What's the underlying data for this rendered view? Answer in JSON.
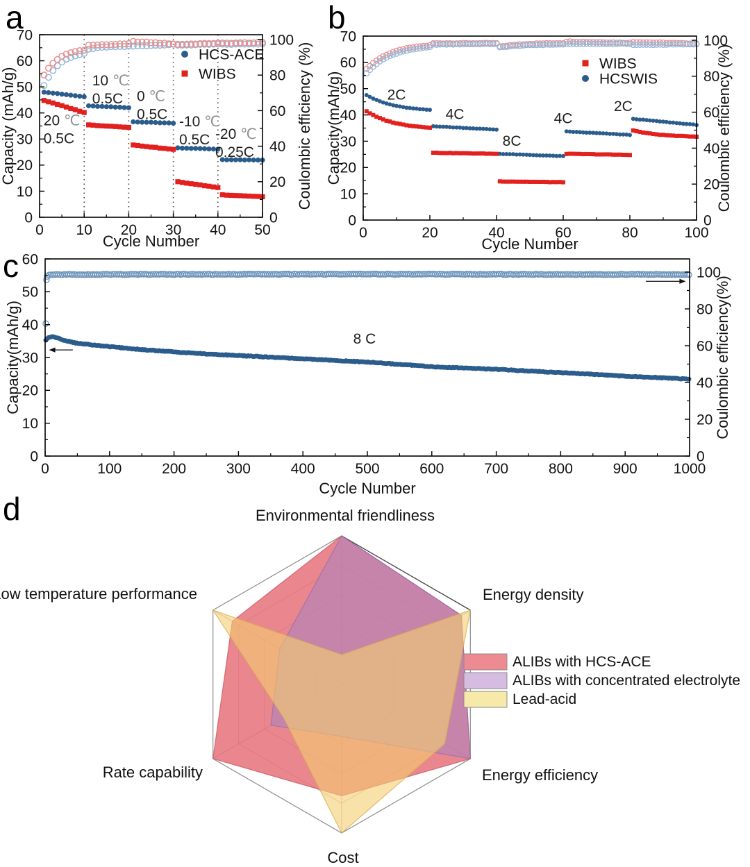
{
  "figure": {
    "panels": [
      {
        "label": "a"
      },
      {
        "label": "b"
      },
      {
        "label": "c"
      },
      {
        "label": "d"
      }
    ]
  },
  "colors": {
    "blue_filled": "#2b5c8c",
    "red_filled": "#e2201e",
    "blue_open": "#93b7d8",
    "red_open": "#e88f8f",
    "c_open": "#6b93ba",
    "axis": "#111111",
    "anno_text": "#1f1f1f",
    "anno_degree": "#909090",
    "radar_red": "#e4646e",
    "radar_red_stroke": "#c8525e",
    "radar_purple": "#ad84be",
    "radar_purple_stroke": "#966caa",
    "radar_yellow": "#f3cf6f",
    "radar_yellow_stroke": "#d4ad4e",
    "radar_grid": "#c2c2c2",
    "radar_outline": "#8c8c8c"
  },
  "chart_data": [
    {
      "panel": "a",
      "type": "scatter",
      "xlabel": "Cycle Number",
      "ylabel_left": "Capacity (mAh/g)",
      "ylabel_right": "Coulombic efficiency (%)",
      "xlim": [
        0,
        50
      ],
      "x_ticks": [
        0,
        10,
        20,
        30,
        40,
        50
      ],
      "ylim_left": [
        0,
        70
      ],
      "y_ticks_left": [
        0,
        10,
        20,
        30,
        40,
        50,
        60,
        70
      ],
      "ylim_right": [
        0,
        100
      ],
      "y_ticks_right": [
        0,
        20,
        40,
        60,
        80,
        100
      ],
      "dotted_vlines": [
        10,
        20,
        30,
        40
      ],
      "legend": [
        {
          "label": "HCS-ACE",
          "marker": "circle",
          "color_key": "blue_filled"
        },
        {
          "label": "WIBS",
          "marker": "square",
          "color_key": "red_filled"
        }
      ],
      "annotations": [
        {
          "lines": [
            "20 ℃",
            "0.5C"
          ],
          "x": 0.9,
          "y": 35.3,
          "anchor": "start"
        },
        {
          "lines": [
            "10 ℃",
            "0.5C"
          ],
          "x": 11.8,
          "y": 50.6,
          "anchor": "start"
        },
        {
          "lines": [
            "0 ℃",
            "0.5C"
          ],
          "x": 21.8,
          "y": 44.6,
          "anchor": "start"
        },
        {
          "lines": [
            "-10 ℃",
            "0.5C"
          ],
          "x": 31.3,
          "y": 34.9,
          "anchor": "start"
        },
        {
          "lines": [
            "-20 ℃",
            "0.25C"
          ],
          "x": 39.4,
          "y": 30.1,
          "anchor": "start"
        }
      ],
      "series": [
        {
          "name": "HCS-ACE efficiency",
          "role": "efficiency",
          "axis": "right",
          "marker": "open_circle",
          "color_key": "blue_open",
          "segments": [
            {
              "cycles": [
                1,
                10
              ],
              "start": 74,
              "end": 93.5,
              "shape": "exp_rise"
            },
            {
              "cycles": [
                11,
                20
              ],
              "start": 94.5,
              "end": 96.3,
              "shape": "exp_rise"
            },
            {
              "cycles": [
                21,
                30
              ],
              "start": 96.3,
              "end": 97.2,
              "shape": "linear"
            },
            {
              "cycles": [
                31,
                40
              ],
              "start": 96.8,
              "end": 97.4,
              "shape": "linear"
            },
            {
              "cycles": [
                41,
                50
              ],
              "start": 97.3,
              "end": 97.6,
              "shape": "linear"
            }
          ]
        },
        {
          "name": "WIBS efficiency",
          "role": "efficiency",
          "axis": "right",
          "marker": "open_circle",
          "color_key": "red_open",
          "segments": [
            {
              "cycles": [
                1,
                10
              ],
              "start": 80,
              "end": 95.3,
              "shape": "exp_rise"
            },
            {
              "cycles": [
                11,
                20
              ],
              "start": 96.8,
              "end": 97.6,
              "shape": "linear"
            },
            {
              "cycles": [
                21,
                30
              ],
              "start": 98.9,
              "end": 97.6,
              "shape": "linear"
            },
            {
              "cycles": [
                31,
                40
              ],
              "start": 97.3,
              "end": 98.0,
              "shape": "linear"
            },
            {
              "cycles": [
                41,
                50
              ],
              "start": 98.0,
              "end": 98.3,
              "shape": "linear"
            }
          ]
        },
        {
          "name": "HCS-ACE",
          "role": "capacity",
          "axis": "left",
          "marker": "circle",
          "color_key": "blue_filled",
          "segments": [
            {
              "cycles": [
                1,
                10
              ],
              "start": 48.0,
              "end": 46.2,
              "shape": "linear"
            },
            {
              "cycles": [
                11,
                20
              ],
              "start": 42.7,
              "end": 42.0,
              "shape": "linear"
            },
            {
              "cycles": [
                21,
                30
              ],
              "start": 36.6,
              "end": 36.1,
              "shape": "linear"
            },
            {
              "cycles": [
                31,
                40
              ],
              "start": 26.6,
              "end": 26.1,
              "shape": "linear"
            },
            {
              "cycles": [
                41,
                50
              ],
              "start": 22.1,
              "end": 21.9,
              "shape": "linear"
            }
          ]
        },
        {
          "name": "WIBS",
          "role": "capacity",
          "axis": "left",
          "marker": "square",
          "color_key": "red_filled",
          "segments": [
            {
              "cycles": [
                1,
                10
              ],
              "start": 44.8,
              "end": 40.2,
              "shape": "linear"
            },
            {
              "cycles": [
                11,
                20
              ],
              "start": 35.4,
              "end": 34.5,
              "shape": "linear"
            },
            {
              "cycles": [
                21,
                30
              ],
              "start": 27.7,
              "end": 26.0,
              "shape": "linear"
            },
            {
              "cycles": [
                31,
                40
              ],
              "start": 13.6,
              "end": 11.4,
              "shape": "linear"
            },
            {
              "cycles": [
                41,
                50
              ],
              "start": 8.6,
              "end": 7.9,
              "shape": "linear"
            }
          ]
        }
      ]
    },
    {
      "panel": "b",
      "type": "scatter",
      "xlabel": "Cycle Number",
      "ylabel_left": "Capacity(mAh/g)",
      "ylabel_right": "Coulombic efficiency (%)",
      "xlim": [
        0,
        100
      ],
      "x_ticks": [
        0,
        20,
        40,
        60,
        80,
        100
      ],
      "ylim_left": [
        0,
        70
      ],
      "y_ticks_left": [
        0,
        10,
        20,
        30,
        40,
        50,
        60,
        70
      ],
      "ylim_right": [
        0,
        100
      ],
      "y_ticks_right": [
        0,
        20,
        40,
        60,
        80,
        100
      ],
      "dotted_vlines": [],
      "legend": [
        {
          "label": "WIBS",
          "marker": "square",
          "color_key": "red_filled"
        },
        {
          "label": "HCSWIS",
          "marker": "circle",
          "color_key": "blue_filled"
        }
      ],
      "annotations": [
        {
          "lines": [
            "2C"
          ],
          "x": 10,
          "y": 45.8,
          "anchor": "middle"
        },
        {
          "lines": [
            "4C"
          ],
          "x": 27.5,
          "y": 38.5,
          "anchor": "middle"
        },
        {
          "lines": [
            "8C"
          ],
          "x": 44.6,
          "y": 28.2,
          "anchor": "middle"
        },
        {
          "lines": [
            "4C"
          ],
          "x": 60,
          "y": 36.8,
          "anchor": "middle"
        },
        {
          "lines": [
            "2C"
          ],
          "x": 78,
          "y": 41.5,
          "anchor": "middle"
        }
      ],
      "series": [
        {
          "name": "WIBS efficiency",
          "role": "efficiency",
          "axis": "right",
          "marker": "open_circle",
          "color_key": "red_open",
          "segments": [
            {
              "cycles": [
                1,
                20
              ],
              "start": 84,
              "end": 98.2,
              "shape": "exp_rise"
            },
            {
              "cycles": [
                21,
                40
              ],
              "start": 98.3,
              "end": 98.4,
              "shape": "linear"
            },
            {
              "cycles": [
                41,
                60
              ],
              "start": 96.5,
              "end": 98.6,
              "shape": "exp_rise"
            },
            {
              "cycles": [
                61,
                80
              ],
              "start": 99.3,
              "end": 98.6,
              "shape": "linear"
            },
            {
              "cycles": [
                81,
                100
              ],
              "start": 99.0,
              "end": 98.2,
              "shape": "linear"
            }
          ]
        },
        {
          "name": "HCSWIS efficiency",
          "role": "efficiency",
          "axis": "right",
          "marker": "open_circle",
          "color_key": "blue_open",
          "segments": [
            {
              "cycles": [
                1,
                20
              ],
              "start": 81.5,
              "end": 97.3,
              "shape": "exp_rise"
            },
            {
              "cycles": [
                21,
                40
              ],
              "start": 97.6,
              "end": 98.0,
              "shape": "linear"
            },
            {
              "cycles": [
                41,
                60
              ],
              "start": 96.0,
              "end": 97.8,
              "shape": "exp_rise"
            },
            {
              "cycles": [
                61,
                80
              ],
              "start": 97.9,
              "end": 98.1,
              "shape": "linear"
            },
            {
              "cycles": [
                81,
                100
              ],
              "start": 97.4,
              "end": 97.8,
              "shape": "linear"
            }
          ]
        },
        {
          "name": "HCSWIS",
          "role": "capacity",
          "axis": "left",
          "marker": "circle",
          "color_key": "blue_filled",
          "segments": [
            {
              "cycles": [
                1,
                20
              ],
              "start": 47.6,
              "end": 41.3,
              "shape": "exp_decay"
            },
            {
              "cycles": [
                21,
                40
              ],
              "start": 35.7,
              "end": 34.4,
              "shape": "linear"
            },
            {
              "cycles": [
                41,
                60
              ],
              "start": 25.2,
              "end": 24.3,
              "shape": "linear"
            },
            {
              "cycles": [
                61,
                80
              ],
              "start": 33.7,
              "end": 32.4,
              "shape": "linear"
            },
            {
              "cycles": [
                81,
                100
              ],
              "start": 38.5,
              "end": 36.2,
              "shape": "linear"
            }
          ]
        },
        {
          "name": "WIBS",
          "role": "capacity",
          "axis": "left",
          "marker": "square",
          "color_key": "red_filled",
          "segments": [
            {
              "cycles": [
                1,
                20
              ],
              "start": 41.4,
              "end": 34.5,
              "shape": "exp_decay"
            },
            {
              "cycles": [
                21,
                40
              ],
              "start": 25.6,
              "end": 25.2,
              "shape": "linear"
            },
            {
              "cycles": [
                41,
                60
              ],
              "start": 14.7,
              "end": 14.4,
              "shape": "linear"
            },
            {
              "cycles": [
                61,
                80
              ],
              "start": 25.2,
              "end": 24.8,
              "shape": "linear"
            },
            {
              "cycles": [
                81,
                100
              ],
              "start": 34.1,
              "end": 31.5,
              "shape": "exp_decay"
            }
          ]
        }
      ]
    },
    {
      "panel": "c",
      "type": "scatter",
      "xlabel": "Cycle Number",
      "ylabel_left": "Capacity(mAh/g)",
      "ylabel_right": "Coulombic efficiency(%)",
      "xlim": [
        0,
        1000
      ],
      "x_ticks": [
        0,
        100,
        200,
        300,
        400,
        500,
        600,
        700,
        800,
        900,
        1000
      ],
      "ylim_left": [
        0,
        60
      ],
      "y_ticks_left": [
        0,
        10,
        20,
        30,
        40,
        50,
        60
      ],
      "ylim_right": [
        0,
        100
      ],
      "y_ticks_right": [
        0,
        20,
        40,
        60,
        80,
        100
      ],
      "dotted_vlines": [],
      "legend": [],
      "annotations": [
        {
          "lines": [
            "8 C"
          ],
          "x": 478,
          "y": 34.2,
          "anchor": "start"
        }
      ],
      "arrows": [
        {
          "dir": "left",
          "x_from": 43,
          "x_to": 6,
          "y": 32.3,
          "axis": "left"
        },
        {
          "dir": "right",
          "x_from": 932,
          "x_to": 994,
          "y": 95,
          "axis": "right"
        }
      ],
      "series": [
        {
          "name": "Coulombic efficiency",
          "role": "efficiency",
          "axis": "right",
          "marker": "open_circle",
          "color_key": "c_open",
          "step": 3,
          "jitter": 0.35,
          "keypoints": [
            [
              3,
              97.6
            ],
            [
              6,
              98.4
            ],
            [
              12,
              98.7
            ],
            [
              500,
              98.9
            ],
            [
              1000,
              98.7
            ]
          ]
        },
        {
          "name": "Capacity at 8C",
          "role": "capacity",
          "axis": "left",
          "marker": "circle",
          "color_key": "blue_filled",
          "step": 2,
          "jitter": 0.22,
          "keypoints": [
            [
              1,
              35.2
            ],
            [
              3,
              35.7
            ],
            [
              6,
              36.1
            ],
            [
              12,
              36.4
            ],
            [
              30,
              35.2
            ],
            [
              50,
              34.3
            ],
            [
              100,
              33.3
            ],
            [
              150,
              32.4
            ],
            [
              200,
              31.7
            ],
            [
              250,
              31.1
            ],
            [
              300,
              30.6
            ],
            [
              350,
              30.1
            ],
            [
              400,
              29.6
            ],
            [
              450,
              29.1
            ],
            [
              500,
              28.6
            ],
            [
              550,
              27.9
            ],
            [
              600,
              27.2
            ],
            [
              650,
              26.8
            ],
            [
              700,
              26.4
            ],
            [
              750,
              25.9
            ],
            [
              800,
              25.4
            ],
            [
              850,
              24.9
            ],
            [
              900,
              24.3
            ],
            [
              950,
              23.9
            ],
            [
              1000,
              23.4
            ]
          ]
        }
      ],
      "outliers": [
        {
          "x": 1,
          "y": 72,
          "axis": "right",
          "marker": "open_circle",
          "color_key": "c_open"
        },
        {
          "x": 2,
          "y": 95.8,
          "axis": "right",
          "marker": "open_circle",
          "color_key": "c_open"
        }
      ]
    },
    {
      "panel": "d",
      "type": "radar",
      "categories": [
        "Environmental friendliness",
        "Energy density",
        "Energy efficiency",
        "Cost",
        "Rate capability",
        "Low temperature performance"
      ],
      "scale_max": 1,
      "grid_levels": [
        0.2,
        0.4,
        0.6,
        0.8,
        1
      ],
      "series": [
        {
          "name": "ALIBs with HCS-ACE",
          "color_key": "radar_red",
          "stroke_key": "radar_red_stroke",
          "fill_opacity": 0.78,
          "swatch": "#ee8b92",
          "values": [
            1.0,
            0.93,
            1.0,
            0.75,
            1.0,
            0.85
          ]
        },
        {
          "name": "ALIBs with concentrated electrolyte",
          "color_key": "radar_purple",
          "stroke_key": "radar_purple_stroke",
          "fill_opacity": 0.6,
          "swatch": "#d5bce0",
          "values": [
            1.0,
            0.93,
            1.0,
            0.35,
            0.55,
            0.48
          ]
        },
        {
          "name": "Lead-acid",
          "color_key": "radar_yellow",
          "stroke_key": "radar_yellow_stroke",
          "fill_opacity": 0.6,
          "swatch": "#f7e9a9",
          "values": [
            0.2,
            1.0,
            0.8,
            1.0,
            0.45,
            1.0
          ]
        }
      ]
    }
  ]
}
